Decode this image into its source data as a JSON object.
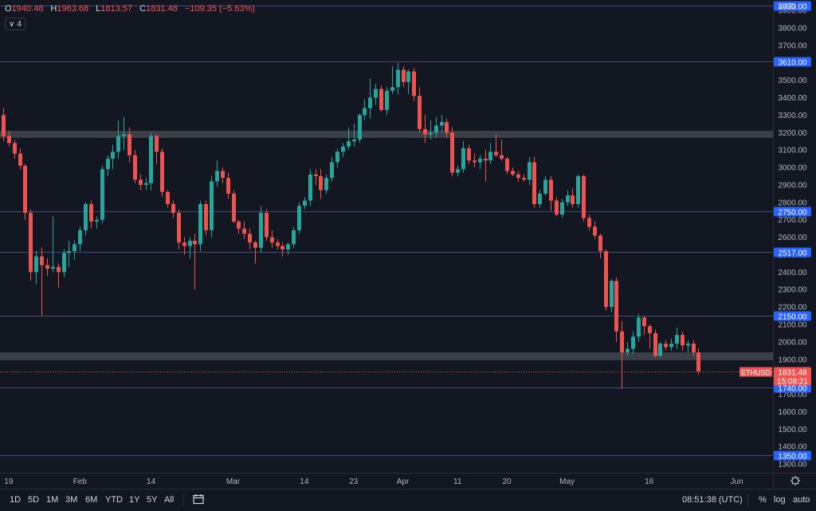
{
  "header": {
    "open_label": "O",
    "open": "1940.48",
    "high_label": "H",
    "high": "1963.68",
    "low_label": "L",
    "low": "1813.57",
    "close_label": "C",
    "close": "1831.48",
    "change": "−109.35 (−5.63%)",
    "indicator_count": "4",
    "currency": "USD"
  },
  "timeframes": [
    "1D",
    "5D",
    "1M",
    "3M",
    "6M",
    "YTD",
    "1Y",
    "5Y",
    "All"
  ],
  "footer": {
    "clock": "08:51:38 (UTC)",
    "percent_label": "%",
    "log_label": "log",
    "auto_label": "auto"
  },
  "colors": {
    "up": "#26a69a",
    "down": "#ef5350",
    "background": "#131722",
    "level_line": "#3f4a77",
    "level_badge": "#2962ff",
    "zone": "#4a4d55"
  },
  "chart_data": {
    "type": "candlestick",
    "symbol": "ETHUSD",
    "last_price": "1831.48",
    "countdown": "15:08:21",
    "ylim": [
      1250,
      3960
    ],
    "y_ticks": [
      1300,
      1400,
      1500,
      1600,
      1700,
      1800,
      1900,
      2000,
      2100,
      2200,
      2300,
      2400,
      2500,
      2600,
      2700,
      2800,
      2900,
      3000,
      3100,
      3200,
      3300,
      3400,
      3500,
      3600,
      3700,
      3800,
      3900
    ],
    "x_ticks": [
      {
        "label": "19",
        "index": 1
      },
      {
        "label": "Feb",
        "index": 14
      },
      {
        "label": "14",
        "index": 27
      },
      {
        "label": "Mar",
        "index": 42
      },
      {
        "label": "14",
        "index": 55
      },
      {
        "label": "23",
        "index": 64
      },
      {
        "label": "Apr",
        "index": 73
      },
      {
        "label": "11",
        "index": 83
      },
      {
        "label": "20",
        "index": 92
      },
      {
        "label": "May",
        "index": 103
      },
      {
        "label": "16",
        "index": 118
      },
      {
        "label": "Jun",
        "index": 134
      }
    ],
    "levels": [
      "3930.00",
      "3610.00",
      "2750.00",
      "2517.00",
      "2150.00",
      "1740.00",
      "1350.00"
    ],
    "zones": [
      [
        3170,
        3210
      ],
      [
        1895,
        1940
      ]
    ],
    "candles": [
      [
        3300,
        3340,
        3150,
        3180
      ],
      [
        3180,
        3210,
        3120,
        3140
      ],
      [
        3140,
        3160,
        3050,
        3080
      ],
      [
        3080,
        3110,
        2990,
        3010
      ],
      [
        3010,
        3020,
        2700,
        2740
      ],
      [
        2740,
        2760,
        2350,
        2400
      ],
      [
        2400,
        2520,
        2330,
        2490
      ],
      [
        2490,
        2540,
        2150,
        2440
      ],
      [
        2440,
        2480,
        2380,
        2420
      ],
      [
        2420,
        2720,
        2400,
        2430
      ],
      [
        2430,
        2450,
        2310,
        2400
      ],
      [
        2400,
        2530,
        2370,
        2510
      ],
      [
        2510,
        2580,
        2430,
        2520
      ],
      [
        2520,
        2580,
        2470,
        2560
      ],
      [
        2560,
        2660,
        2520,
        2640
      ],
      [
        2640,
        2800,
        2610,
        2790
      ],
      [
        2790,
        2810,
        2650,
        2690
      ],
      [
        2690,
        2720,
        2650,
        2700
      ],
      [
        2700,
        3010,
        2680,
        2990
      ],
      [
        2990,
        3070,
        2950,
        3050
      ],
      [
        3050,
        3130,
        2990,
        3090
      ],
      [
        3090,
        3270,
        3050,
        3180
      ],
      [
        3180,
        3290,
        3100,
        3190
      ],
      [
        3190,
        3230,
        3030,
        3070
      ],
      [
        3070,
        3100,
        2910,
        2930
      ],
      [
        2930,
        2960,
        2870,
        2900
      ],
      [
        2900,
        2940,
        2870,
        2910
      ],
      [
        2910,
        3200,
        2870,
        3180
      ],
      [
        3180,
        3190,
        3020,
        3090
      ],
      [
        3090,
        3110,
        2830,
        2860
      ],
      [
        2860,
        2870,
        2770,
        2790
      ],
      [
        2790,
        2810,
        2710,
        2740
      ],
      [
        2740,
        2760,
        2530,
        2570
      ],
      [
        2570,
        2600,
        2500,
        2550
      ],
      [
        2550,
        2600,
        2480,
        2580
      ],
      [
        2580,
        2620,
        2300,
        2560
      ],
      [
        2560,
        2810,
        2520,
        2790
      ],
      [
        2790,
        2810,
        2610,
        2640
      ],
      [
        2640,
        2950,
        2600,
        2920
      ],
      [
        2920,
        3040,
        2890,
        2980
      ],
      [
        2980,
        3000,
        2910,
        2940
      ],
      [
        2940,
        2970,
        2820,
        2850
      ],
      [
        2850,
        2870,
        2680,
        2690
      ],
      [
        2690,
        2700,
        2620,
        2650
      ],
      [
        2650,
        2690,
        2590,
        2620
      ],
      [
        2620,
        2650,
        2530,
        2570
      ],
      [
        2570,
        2580,
        2450,
        2540
      ],
      [
        2540,
        2780,
        2510,
        2740
      ],
      [
        2740,
        2760,
        2580,
        2600
      ],
      [
        2600,
        2640,
        2540,
        2570
      ],
      [
        2570,
        2590,
        2530,
        2550
      ],
      [
        2550,
        2570,
        2490,
        2530
      ],
      [
        2530,
        2570,
        2500,
        2560
      ],
      [
        2560,
        2660,
        2540,
        2640
      ],
      [
        2640,
        2800,
        2620,
        2780
      ],
      [
        2780,
        2830,
        2760,
        2810
      ],
      [
        2810,
        2990,
        2780,
        2960
      ],
      [
        2960,
        2990,
        2900,
        2950
      ],
      [
        2950,
        2990,
        2820,
        2870
      ],
      [
        2870,
        2960,
        2850,
        2940
      ],
      [
        2940,
        3060,
        2920,
        3030
      ],
      [
        3030,
        3110,
        3000,
        3090
      ],
      [
        3090,
        3140,
        3060,
        3120
      ],
      [
        3120,
        3230,
        3100,
        3150
      ],
      [
        3150,
        3250,
        3120,
        3160
      ],
      [
        3160,
        3310,
        3140,
        3300
      ],
      [
        3300,
        3390,
        3270,
        3340
      ],
      [
        3340,
        3510,
        3280,
        3400
      ],
      [
        3400,
        3480,
        3360,
        3450
      ],
      [
        3450,
        3470,
        3320,
        3330
      ],
      [
        3330,
        3460,
        3300,
        3440
      ],
      [
        3440,
        3580,
        3420,
        3460
      ],
      [
        3460,
        3600,
        3420,
        3560
      ],
      [
        3560,
        3580,
        3460,
        3490
      ],
      [
        3490,
        3560,
        3420,
        3550
      ],
      [
        3550,
        3570,
        3380,
        3410
      ],
      [
        3410,
        3460,
        3200,
        3220
      ],
      [
        3220,
        3300,
        3140,
        3190
      ],
      [
        3190,
        3270,
        3160,
        3200
      ],
      [
        3200,
        3290,
        3170,
        3240
      ],
      [
        3240,
        3300,
        3200,
        3260
      ],
      [
        3260,
        3280,
        3170,
        3200
      ],
      [
        3200,
        3230,
        2950,
        2970
      ],
      [
        2970,
        3010,
        2950,
        2990
      ],
      [
        2990,
        3150,
        2970,
        3110
      ],
      [
        3110,
        3130,
        3020,
        3040
      ],
      [
        3040,
        3080,
        3000,
        3030
      ],
      [
        3030,
        3070,
        2990,
        3050
      ],
      [
        3050,
        3100,
        2920,
        3040
      ],
      [
        3040,
        3140,
        3020,
        3090
      ],
      [
        3090,
        3190,
        3060,
        3070
      ],
      [
        3070,
        3160,
        3040,
        3050
      ],
      [
        3050,
        3060,
        2960,
        2980
      ],
      [
        2980,
        3000,
        2950,
        2960
      ],
      [
        2960,
        2980,
        2920,
        2940
      ],
      [
        2940,
        2960,
        2920,
        2930
      ],
      [
        2930,
        3060,
        2900,
        3030
      ],
      [
        3030,
        3060,
        2770,
        2790
      ],
      [
        2790,
        2870,
        2770,
        2850
      ],
      [
        2850,
        2950,
        2840,
        2930
      ],
      [
        2930,
        2950,
        2750,
        2810
      ],
      [
        2810,
        2830,
        2720,
        2730
      ],
      [
        2730,
        2820,
        2710,
        2800
      ],
      [
        2800,
        2870,
        2780,
        2840
      ],
      [
        2840,
        2880,
        2770,
        2790
      ],
      [
        2790,
        2960,
        2770,
        2950
      ],
      [
        2950,
        2960,
        2690,
        2710
      ],
      [
        2710,
        2730,
        2640,
        2660
      ],
      [
        2660,
        2690,
        2590,
        2610
      ],
      [
        2610,
        2620,
        2480,
        2520
      ],
      [
        2520,
        2530,
        2180,
        2200
      ],
      [
        2200,
        2360,
        2170,
        2350
      ],
      [
        2350,
        2370,
        2000,
        2060
      ],
      [
        2060,
        2120,
        1730,
        1940
      ],
      [
        1940,
        2000,
        1920,
        1960
      ],
      [
        1960,
        2060,
        1930,
        2030
      ],
      [
        2030,
        2160,
        2000,
        2140
      ],
      [
        2140,
        2150,
        2040,
        2090
      ],
      [
        2090,
        2100,
        1960,
        2050
      ],
      [
        2050,
        2070,
        1910,
        1920
      ],
      [
        1920,
        2000,
        1910,
        1990
      ],
      [
        1990,
        2010,
        1950,
        1970
      ],
      [
        1970,
        2020,
        1950,
        1990
      ],
      [
        1990,
        2080,
        1960,
        2040
      ],
      [
        2040,
        2060,
        1950,
        1980
      ],
      [
        1980,
        2010,
        1940,
        1990
      ],
      [
        1990,
        2010,
        1920,
        1940
      ],
      [
        1940,
        1964,
        1814,
        1831
      ]
    ]
  }
}
